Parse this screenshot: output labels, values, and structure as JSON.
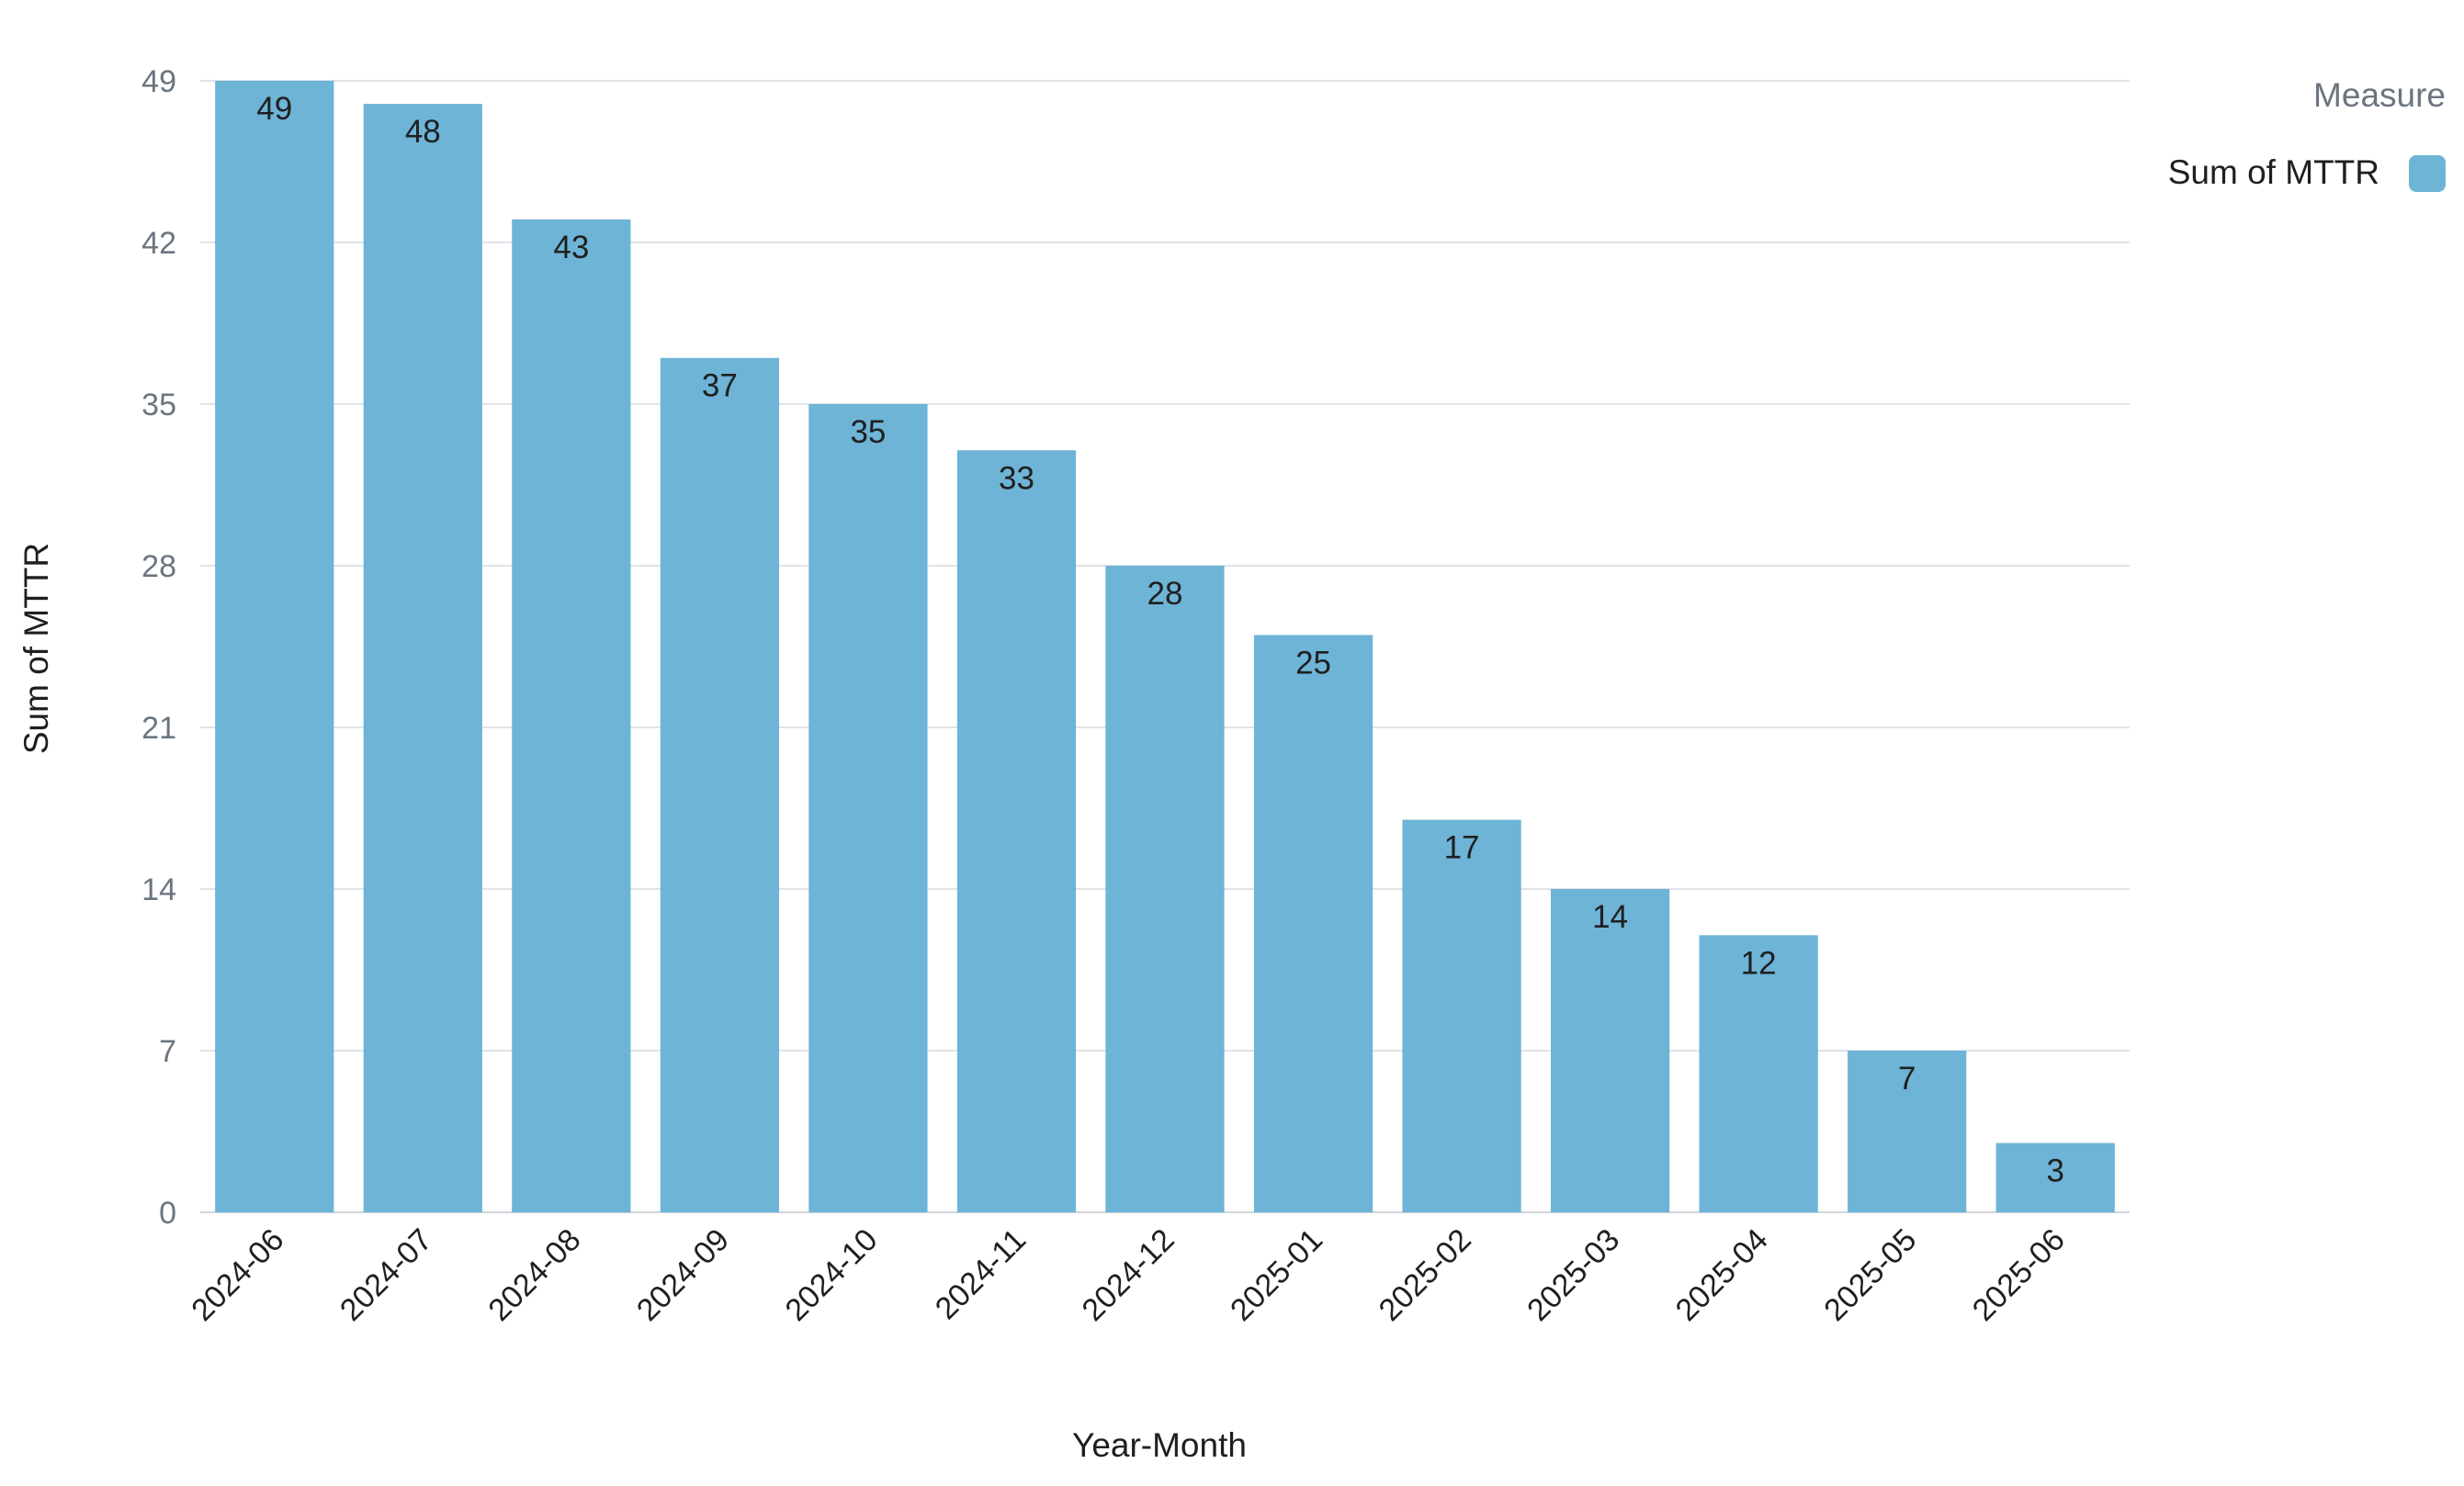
{
  "chart_data": {
    "type": "bar",
    "categories": [
      "2024-06",
      "2024-07",
      "2024-08",
      "2024-09",
      "2024-10",
      "2024-11",
      "2024-12",
      "2025-01",
      "2025-02",
      "2025-03",
      "2025-04",
      "2025-05",
      "2025-06"
    ],
    "series": [
      {
        "name": "Sum of MTTR",
        "values": [
          49,
          48,
          43,
          37,
          35,
          33,
          28,
          25,
          17,
          14,
          12,
          7,
          3
        ],
        "color": "#6db4d6"
      }
    ],
    "xlabel": "Year-Month",
    "ylabel": "Sum of MTTR",
    "ylim": [
      0,
      49
    ],
    "yticks": [
      0,
      7,
      14,
      21,
      28,
      35,
      42,
      49
    ],
    "grid": true,
    "data_labels": true,
    "x_tick_rotation": -45,
    "legend": {
      "title": "Measure",
      "placement": "top-right"
    }
  },
  "colors": {
    "bar": "#6db4d6",
    "grid": "#dfe3e8",
    "tick_text": "#6b7580",
    "label_text": "#1f1f1f"
  }
}
